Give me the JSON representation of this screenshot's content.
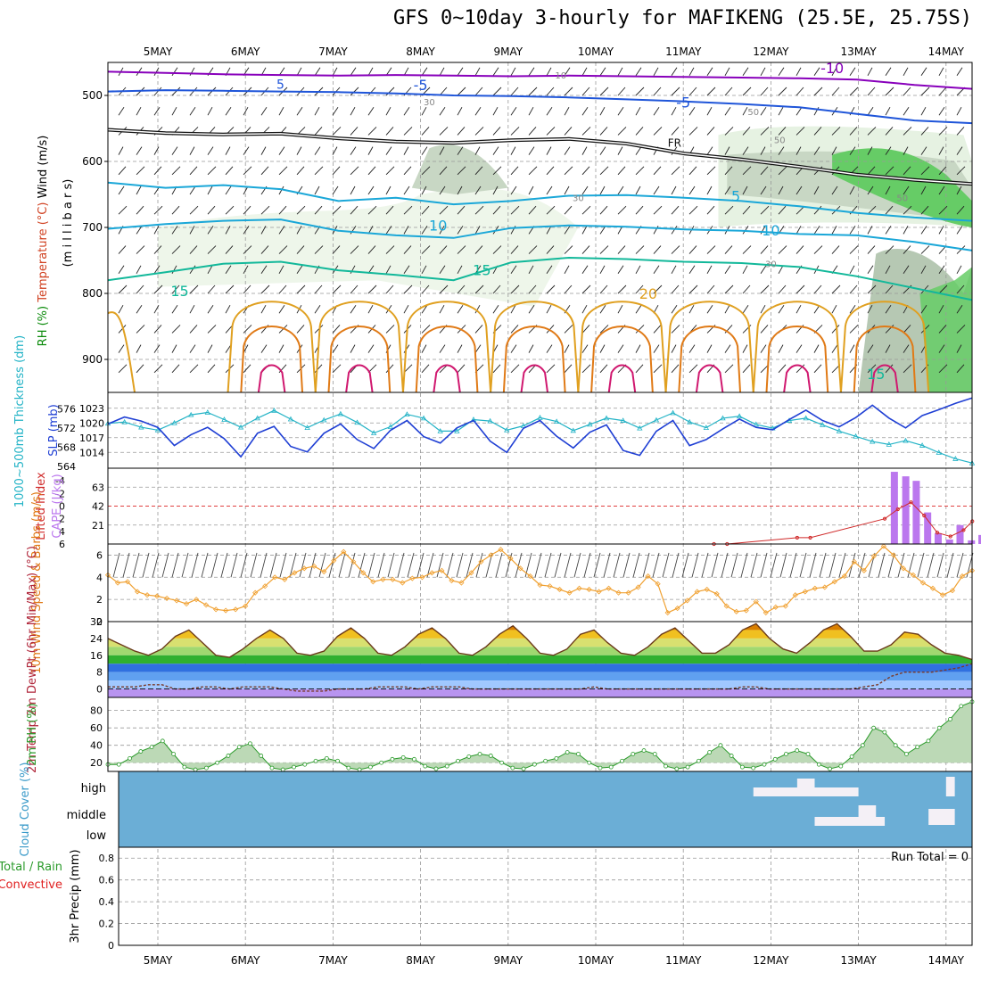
{
  "title": "GFS 0~10day 3-hourly for MAFIKENG (25.5E, 25.75S)",
  "colors": {
    "purple_temp": "#8800bb",
    "blue_temp": "#1f55d9",
    "cyan_temp": "#1aa7d8",
    "teal_temp": "#12b89a",
    "orange_temp": "#e0a020",
    "darkorange_temp": "#e07a16",
    "magenta_temp": "#d0186f",
    "slp": "#1f3fd4",
    "thickness": "#23b3c6",
    "cape": "#bb77ee",
    "lifted": "#d02a2a",
    "wind": "#f0a030",
    "rh": "#2a9a2a",
    "cloud": "#6baed6"
  },
  "chart_data": [
    {
      "type": "contour",
      "panel": "upper-air",
      "title": "Temperature / Wind / RH cross-section",
      "ylabel_parts": [
        "RH (%)",
        "Temperature (°C)",
        "Wind (m/s)"
      ],
      "ylabel_unit": "(m i l l i b a r s)",
      "ylim": [
        450,
        950
      ],
      "y_ticks": [
        "500",
        "600",
        "700",
        "800",
        "900"
      ],
      "x_labels": [
        "5MAY",
        "6MAY",
        "7MAY",
        "8MAY",
        "9MAY",
        "10MAY",
        "11MAY",
        "12MAY",
        "13MAY",
        "14MAY"
      ],
      "contour_labels": [
        "-10",
        "-5",
        "-5",
        "5",
        "5",
        "10",
        "10",
        "15",
        "15",
        "15",
        "20",
        "FR"
      ],
      "rh_labels": [
        "10",
        "30",
        "50",
        "50",
        "30",
        "50",
        "30"
      ],
      "series": [
        {
          "name": "-10",
          "pressure": [
            464,
            466,
            468,
            469,
            470,
            469,
            470,
            471,
            470,
            471,
            472,
            473,
            474,
            476,
            484,
            490
          ]
        },
        {
          "name": "-5",
          "pressure": [
            494,
            492,
            493,
            494,
            495,
            497,
            500,
            501,
            503,
            506,
            509,
            513,
            518,
            528,
            538,
            542
          ]
        },
        {
          "name": "FR",
          "pressure": [
            552,
            557,
            559,
            558,
            565,
            570,
            572,
            568,
            566,
            573,
            588,
            597,
            608,
            620,
            628,
            634
          ]
        },
        {
          "name": "5",
          "pressure": [
            632,
            640,
            636,
            642,
            660,
            655,
            665,
            660,
            652,
            651,
            655,
            660,
            668,
            678,
            685,
            690
          ]
        },
        {
          "name": "10",
          "pressure": [
            702,
            695,
            690,
            688,
            705,
            712,
            716,
            701,
            697,
            699,
            703,
            705,
            710,
            712,
            722,
            735
          ]
        },
        {
          "name": "15",
          "pressure": [
            780,
            768,
            755,
            752,
            765,
            772,
            780,
            753,
            746,
            748,
            752,
            754,
            760,
            774,
            792,
            810
          ]
        }
      ]
    },
    {
      "type": "line",
      "panel": "slp-thickness",
      "ylabel": "SLP (mb)",
      "ylabel2": "1000~500mb Thickness (dm)",
      "slp_ticks": [
        "1023",
        "1020",
        "1017",
        "1014"
      ],
      "thickness_ticks": [
        "576",
        "572",
        "568",
        "564"
      ],
      "slp": [
        1019.8,
        1021.2,
        1020.4,
        1019.1,
        1015.4,
        1017.6,
        1019.1,
        1016.8,
        1013.1,
        1017.9,
        1019.3,
        1015.2,
        1014.1,
        1017.9,
        1019.8,
        1016.6,
        1014.8,
        1018.5,
        1020.5,
        1017.2,
        1015.9,
        1019.0,
        1020.5,
        1016.3,
        1014.0,
        1018.9,
        1020.5,
        1017.3,
        1014.9,
        1018.1,
        1019.6,
        1014.4,
        1013.4,
        1018.3,
        1020.5,
        1015.4,
        1016.6,
        1018.8,
        1020.8,
        1019.1,
        1018.6,
        1020.7,
        1022.6,
        1020.5,
        1019.2,
        1021.1,
        1023.6,
        1021.0,
        1019.0,
        1021.5,
        1022.7,
        1024.0,
        1025.1
      ],
      "thickness": [
        573.0,
        573.3,
        572.2,
        571.6,
        573.1,
        574.8,
        575.3,
        573.8,
        572.2,
        574.1,
        575.7,
        573.9,
        572.1,
        573.7,
        575.0,
        573.2,
        571.0,
        572.3,
        574.9,
        574.1,
        571.4,
        571.4,
        573.8,
        573.5,
        571.6,
        572.5,
        574.2,
        573.4,
        571.5,
        572.8,
        574.1,
        573.6,
        572.0,
        573.7,
        575.2,
        573.3,
        572.1,
        574.1,
        574.5,
        572.8,
        572.0,
        573.6,
        574.1,
        572.7,
        571.4,
        570.3,
        569.2,
        568.6,
        569.4,
        568.4,
        566.9,
        565.6,
        564.7
      ]
    },
    {
      "type": "bar",
      "panel": "cape-lifted-index",
      "ylabel": "CAPE (J/kg)",
      "ylabel2": "Lifted Index",
      "cape_ticks": [
        "63",
        "42",
        "21"
      ],
      "li_ticks": [
        "-4",
        "-2",
        "0",
        "2",
        "4",
        "6"
      ],
      "cape_x": [
        8.41,
        8.54,
        8.66,
        8.79,
        8.91,
        9.04,
        9.16,
        9.29,
        9.41
      ],
      "cape": [
        80,
        75,
        70,
        35,
        12,
        5,
        21,
        4,
        10
      ],
      "li_x": [
        6.35,
        6.5,
        7.3,
        7.45,
        8.3,
        8.45,
        8.6,
        8.75,
        8.9,
        9.05,
        9.2,
        9.3
      ],
      "lifted_index": [
        6,
        6,
        5,
        5,
        2,
        0.5,
        -0.6,
        1.5,
        4.2,
        4.8,
        3.8,
        2.4
      ]
    },
    {
      "type": "line",
      "panel": "wind-10m",
      "ylabel": "10m Wind Speed & Barbs (m/s)",
      "ticks": [
        "0",
        "2",
        "4",
        "6"
      ],
      "speed": [
        4.2,
        3.5,
        3.6,
        2.7,
        2.4,
        2.3,
        2.1,
        1.9,
        1.6,
        2.0,
        1.5,
        1.1,
        1.0,
        1.1,
        1.4,
        2.6,
        3.2,
        4.0,
        3.8,
        4.4,
        4.8,
        5.0,
        4.5,
        5.5,
        6.3,
        5.4,
        4.4,
        3.6,
        3.8,
        3.8,
        3.5,
        3.9,
        4.0,
        4.4,
        4.6,
        3.7,
        3.5,
        4.4,
        5.4,
        6.0,
        6.5,
        5.7,
        4.8,
        4.1,
        3.3,
        3.2,
        2.9,
        2.6,
        3.0,
        2.9,
        2.7,
        3.0,
        2.6,
        2.6,
        3.1,
        4.1,
        3.4,
        0.8,
        1.2,
        1.9,
        2.7,
        2.9,
        2.5,
        1.4,
        0.9,
        1.0,
        1.8,
        0.8,
        1.3,
        1.4,
        2.4,
        2.7,
        3.0,
        3.1,
        3.6,
        4.1,
        5.4,
        4.6,
        5.9,
        6.8,
        6.0,
        4.8,
        4.2,
        3.5,
        3.0,
        2.4,
        2.8,
        4.1,
        4.6
      ]
    },
    {
      "type": "area",
      "panel": "temperature-2m",
      "ylabel": "2m Temp 2m DewPt (6hr Min/Max) (°C)",
      "ticks": [
        "32",
        "24",
        "16",
        "8",
        "0"
      ],
      "temp": [
        24,
        21,
        18,
        16,
        19,
        25,
        28,
        22,
        16,
        15,
        19,
        24,
        28,
        24,
        17,
        16,
        18,
        25,
        29,
        24,
        17,
        16,
        20,
        26,
        29,
        24,
        17,
        16,
        20,
        26,
        30,
        24,
        17,
        16,
        19,
        26,
        28,
        22,
        17,
        16,
        20,
        26,
        29,
        23,
        17,
        17,
        21,
        28,
        31,
        24,
        19,
        17,
        22,
        28,
        31,
        25,
        18,
        18,
        21,
        27,
        26,
        21,
        17,
        16,
        14
      ],
      "dewpoint": [
        1,
        1,
        1,
        2,
        2,
        0,
        0,
        1,
        1,
        0,
        1,
        1,
        1,
        0,
        -1,
        -1,
        -1,
        0,
        0,
        0,
        1,
        1,
        1,
        0,
        1,
        1,
        1,
        0,
        0,
        0,
        0,
        0,
        0,
        0,
        0,
        0,
        1,
        0,
        0,
        0,
        0,
        0,
        0,
        0,
        0,
        0,
        0,
        1,
        1,
        0,
        0,
        0,
        0,
        0,
        0,
        0,
        1,
        2,
        6,
        8,
        8,
        8,
        9,
        10,
        12
      ]
    },
    {
      "type": "area",
      "panel": "rh-2m",
      "ylabel": "2m RH (%)",
      "ticks": [
        "80",
        "60",
        "40",
        "20"
      ],
      "rh": [
        18,
        18,
        25,
        33,
        38,
        45,
        30,
        15,
        12,
        14,
        20,
        28,
        38,
        42,
        28,
        14,
        12,
        15,
        18,
        22,
        25,
        22,
        14,
        12,
        15,
        20,
        24,
        26,
        24,
        16,
        13,
        16,
        22,
        27,
        30,
        28,
        20,
        14,
        13,
        18,
        22,
        25,
        32,
        30,
        20,
        14,
        15,
        22,
        30,
        34,
        30,
        16,
        13,
        15,
        22,
        32,
        40,
        28,
        15,
        14,
        18,
        24,
        30,
        34,
        30,
        18,
        13,
        16,
        27,
        40,
        60,
        55,
        40,
        30,
        38,
        45,
        60,
        70,
        85,
        90
      ]
    },
    {
      "type": "heatmap",
      "panel": "cloud-cover",
      "ylabel": "Cloud Cover (%)",
      "levels": [
        "high",
        "middle",
        "low"
      ]
    },
    {
      "type": "bar",
      "panel": "precip",
      "ylabel": "3hr Precip (mm)",
      "legend": [
        "Total / Rain",
        "Convective"
      ],
      "annotation": "Run Total = 0",
      "ticks": [
        "0.8",
        "0.6",
        "0.4",
        "0.2",
        "0"
      ],
      "ylim": [
        0,
        0.9
      ],
      "values": []
    }
  ]
}
